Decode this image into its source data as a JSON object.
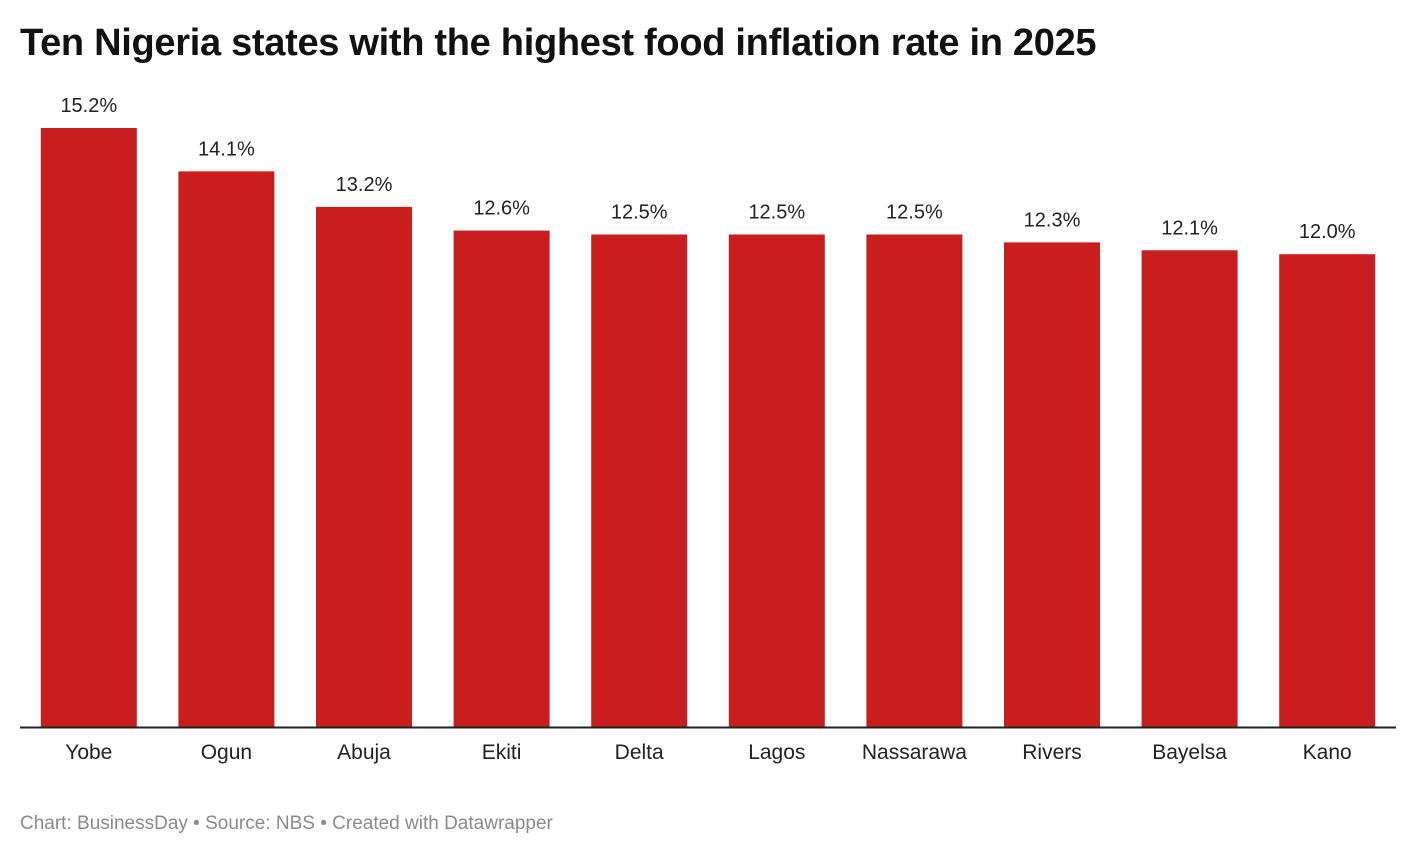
{
  "chart_data": {
    "type": "bar",
    "title": "Ten Nigeria states with the highest food inflation rate in 2025",
    "categories": [
      "Yobe",
      "Ogun",
      "Abuja",
      "Ekiti",
      "Delta",
      "Lagos",
      "Nassarawa",
      "Rivers",
      "Bayelsa",
      "Kano"
    ],
    "values": [
      15.2,
      14.1,
      13.2,
      12.6,
      12.5,
      12.5,
      12.5,
      12.3,
      12.1,
      12.0
    ],
    "data_labels": [
      "15.2%",
      "14.1%",
      "13.2%",
      "12.6%",
      "12.5%",
      "12.5%",
      "12.5%",
      "12.3%",
      "12.1%",
      "12.0%"
    ],
    "xlabel": "",
    "ylabel": "",
    "ylim": [
      0,
      15.2
    ],
    "grid": false,
    "bar_color": "#c81e1e"
  },
  "footer": {
    "text": "Chart: BusinessDay • Source: NBS • Created with Datawrapper"
  }
}
